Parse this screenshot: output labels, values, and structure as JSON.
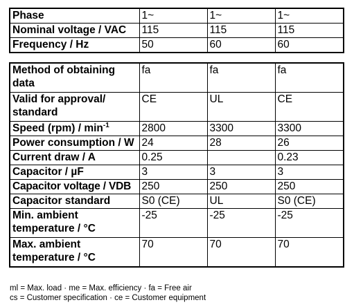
{
  "table_top": {
    "rows": [
      {
        "label": "Phase",
        "values": [
          "1~",
          "1~",
          "1~"
        ]
      },
      {
        "label": "Nominal voltage / VAC",
        "values": [
          "115",
          "115",
          "115"
        ]
      },
      {
        "label": "Frequency / Hz",
        "values": [
          "50",
          "60",
          "60"
        ]
      }
    ]
  },
  "table_bottom": {
    "rows": [
      {
        "label": "Method of obtaining data",
        "values": [
          "fa",
          "fa",
          "fa"
        ]
      },
      {
        "label": "Valid for approval/ standard",
        "values": [
          "CE",
          "UL",
          "CE"
        ]
      },
      {
        "label_main": "Speed (rpm) / min",
        "label_sup": "-1",
        "values": [
          "2800",
          "3300",
          "3300"
        ]
      },
      {
        "label": "Power consumption / W",
        "values": [
          "24",
          "28",
          "26"
        ]
      },
      {
        "label": "Current draw / A",
        "values": [
          "0.25",
          "",
          "0.23"
        ]
      },
      {
        "label": "Capacitor / µF",
        "values": [
          "3",
          "3",
          "3"
        ]
      },
      {
        "label": "Capacitor voltage / VDB",
        "values": [
          "250",
          "250",
          "250"
        ]
      },
      {
        "label": "Capacitor standard",
        "values": [
          "S0 (CE)",
          "UL",
          "S0 (CE)"
        ]
      },
      {
        "label": "Min. ambient temperature / °C",
        "values": [
          "-25",
          "-25",
          "-25"
        ]
      },
      {
        "label": "Max. ambient temperature / °C",
        "values": [
          "70",
          "70",
          "70"
        ]
      }
    ]
  },
  "footnotes": {
    "line1": "ml = Max. load · me = Max. efficiency · fa = Free air",
    "line2": "cs = Customer specification · ce = Customer equipment"
  }
}
